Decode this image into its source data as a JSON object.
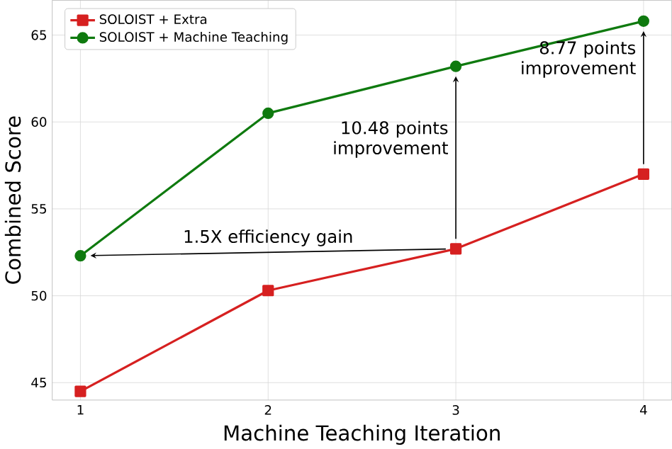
{
  "chart_data": {
    "type": "line",
    "xlabel": "Machine Teaching Iteration",
    "ylabel": "Combined Score",
    "x": [
      1,
      2,
      3,
      4
    ],
    "series": [
      {
        "name": "SOLOIST + Extra",
        "color": "#d62020",
        "marker": "square",
        "values": [
          44.5,
          50.3,
          52.7,
          57.0
        ]
      },
      {
        "name": "SOLOIST + Machine Teaching",
        "color": "#0f7a0f",
        "marker": "circle",
        "values": [
          52.3,
          60.5,
          63.2,
          65.8
        ]
      }
    ],
    "xlim": [
      0.85,
      4.15
    ],
    "ylim": [
      44.0,
      67.0
    ],
    "xticks": [
      1,
      2,
      3,
      4
    ],
    "yticks": [
      45,
      50,
      55,
      60,
      65
    ],
    "grid": true,
    "legend": "top left",
    "annotations": [
      "1.5X efficiency gain",
      "10.48 points improvement",
      {
        "text": "8.77 points improvement",
        "x": 4,
        "y": 65.8
      }
    ]
  }
}
